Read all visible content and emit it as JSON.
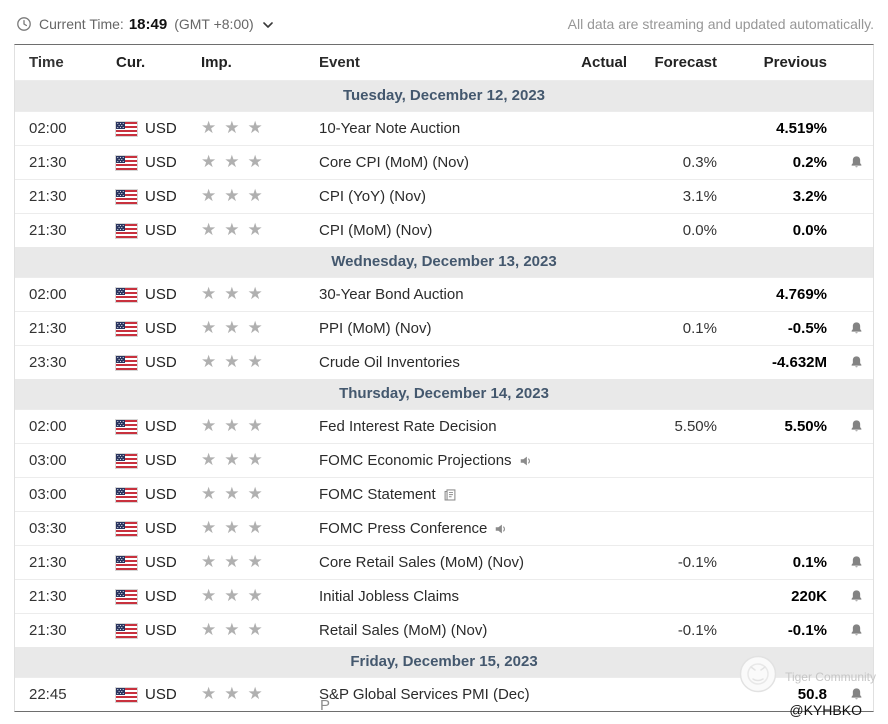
{
  "topbar": {
    "current_time_label": "Current Time:",
    "current_time_value": "18:49",
    "timezone": "(GMT +8:00)",
    "streaming_note": "All data are streaming and updated automatically."
  },
  "table": {
    "columns": [
      "Time",
      "Cur.",
      "Imp.",
      "Event",
      "Actual",
      "Forecast",
      "Previous"
    ]
  },
  "groups": [
    {
      "date": "Tuesday, December 12, 2023",
      "rows": [
        {
          "time": "02:00",
          "currency": "USD",
          "importance": 3,
          "event": "10-Year Note Auction",
          "actual": "",
          "forecast": "",
          "previous": "4.519%",
          "alert": false,
          "icon": null
        },
        {
          "time": "21:30",
          "currency": "USD",
          "importance": 3,
          "event": "Core CPI (MoM) (Nov)",
          "actual": "",
          "forecast": "0.3%",
          "previous": "0.2%",
          "alert": true,
          "icon": null
        },
        {
          "time": "21:30",
          "currency": "USD",
          "importance": 3,
          "event": "CPI (YoY) (Nov)",
          "actual": "",
          "forecast": "3.1%",
          "previous": "3.2%",
          "alert": false,
          "icon": null
        },
        {
          "time": "21:30",
          "currency": "USD",
          "importance": 3,
          "event": "CPI (MoM) (Nov)",
          "actual": "",
          "forecast": "0.0%",
          "previous": "0.0%",
          "alert": false,
          "icon": null
        }
      ]
    },
    {
      "date": "Wednesday, December 13, 2023",
      "rows": [
        {
          "time": "02:00",
          "currency": "USD",
          "importance": 3,
          "event": "30-Year Bond Auction",
          "actual": "",
          "forecast": "",
          "previous": "4.769%",
          "alert": false,
          "icon": null
        },
        {
          "time": "21:30",
          "currency": "USD",
          "importance": 3,
          "event": "PPI (MoM) (Nov)",
          "actual": "",
          "forecast": "0.1%",
          "previous": "-0.5%",
          "alert": true,
          "icon": null
        },
        {
          "time": "23:30",
          "currency": "USD",
          "importance": 3,
          "event": "Crude Oil Inventories",
          "actual": "",
          "forecast": "",
          "previous": "-4.632M",
          "alert": true,
          "icon": null
        }
      ]
    },
    {
      "date": "Thursday, December 14, 2023",
      "rows": [
        {
          "time": "02:00",
          "currency": "USD",
          "importance": 3,
          "event": "Fed Interest Rate Decision",
          "actual": "",
          "forecast": "5.50%",
          "previous": "5.50%",
          "alert": true,
          "icon": null
        },
        {
          "time": "03:00",
          "currency": "USD",
          "importance": 3,
          "event": "FOMC Economic Projections",
          "actual": "",
          "forecast": "",
          "previous": "",
          "alert": false,
          "icon": "speaker-icon"
        },
        {
          "time": "03:00",
          "currency": "USD",
          "importance": 3,
          "event": "FOMC Statement",
          "actual": "",
          "forecast": "",
          "previous": "",
          "alert": false,
          "icon": "document-icon"
        },
        {
          "time": "03:30",
          "currency": "USD",
          "importance": 3,
          "event": "FOMC Press Conference",
          "actual": "",
          "forecast": "",
          "previous": "",
          "alert": false,
          "icon": "speaker-icon"
        },
        {
          "time": "21:30",
          "currency": "USD",
          "importance": 3,
          "event": "Core Retail Sales (MoM) (Nov)",
          "actual": "",
          "forecast": "-0.1%",
          "previous": "0.1%",
          "alert": true,
          "icon": null
        },
        {
          "time": "21:30",
          "currency": "USD",
          "importance": 3,
          "event": "Initial Jobless Claims",
          "actual": "",
          "forecast": "",
          "previous": "220K",
          "alert": true,
          "icon": null
        },
        {
          "time": "21:30",
          "currency": "USD",
          "importance": 3,
          "event": "Retail Sales (MoM) (Nov)",
          "actual": "",
          "forecast": "-0.1%",
          "previous": "-0.1%",
          "alert": true,
          "icon": null
        }
      ]
    },
    {
      "date": "Friday, December 15, 2023",
      "rows": [
        {
          "time": "22:45",
          "currency": "USD",
          "importance": 3,
          "event": "S&P Global Services PMI (Dec)",
          "actual": "",
          "forecast": "",
          "previous": "50.8",
          "alert": true,
          "icon": null
        }
      ]
    }
  ],
  "watermark": {
    "community": "Tiger Community",
    "handle": "@KYHBKO"
  },
  "footer": {
    "truncated_text": "P"
  },
  "colors": {
    "date_band_bg": "#e9e9e9",
    "date_band_text": "#44586e",
    "star": "#b0b0b0",
    "previous_text": "#000000",
    "muted_text": "#979797"
  }
}
